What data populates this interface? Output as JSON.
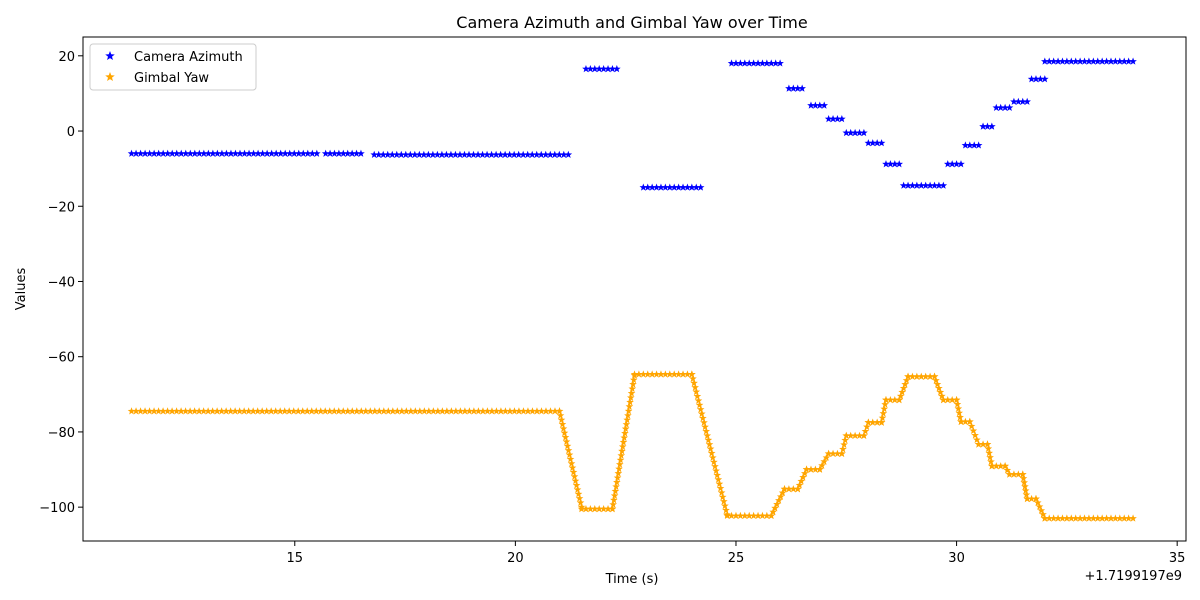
{
  "chart_data": {
    "type": "scatter",
    "title": "Camera Azimuth and Gimbal Yaw over Time",
    "xlabel": "Time (s)",
    "ylabel": "Values",
    "x_offset_label": "+1.7199197e9",
    "xlim": [
      10.2,
      35.2
    ],
    "ylim": [
      -109,
      25
    ],
    "xticks": [
      15,
      20,
      25,
      30,
      35
    ],
    "yticks": [
      20,
      0,
      -20,
      -40,
      -60,
      -80,
      -100
    ],
    "ytick_labels": [
      "20",
      "0",
      "−20",
      "−40",
      "−60",
      "−80",
      "−100"
    ],
    "grid": false,
    "legend_position": "top-left",
    "marker": "star",
    "series": [
      {
        "name": "Camera Azimuth",
        "color": "#0000ff",
        "segments": [
          {
            "x_start": 11.3,
            "x_end": 15.5,
            "y_start": -6,
            "y_end": -6
          },
          {
            "x_start": 15.7,
            "x_end": 16.5,
            "y_start": -6,
            "y_end": -6
          },
          {
            "x_start": 16.8,
            "x_end": 21.2,
            "y_start": -6.3,
            "y_end": -6.3
          },
          {
            "x_start": 21.6,
            "x_end": 22.3,
            "y_start": 16.5,
            "y_end": 16.5
          },
          {
            "x_start": 22.9,
            "x_end": 24.2,
            "y_start": -15,
            "y_end": -15
          },
          {
            "x_start": 24.9,
            "x_end": 26.0,
            "y_start": 18,
            "y_end": 18
          },
          {
            "x_start": 26.2,
            "x_end": 26.5,
            "y_start": 11.3,
            "y_end": 11.3
          },
          {
            "x_start": 26.7,
            "x_end": 27.0,
            "y_start": 6.8,
            "y_end": 6.8
          },
          {
            "x_start": 27.1,
            "x_end": 27.4,
            "y_start": 3.2,
            "y_end": 3.2
          },
          {
            "x_start": 27.5,
            "x_end": 27.9,
            "y_start": -0.5,
            "y_end": -0.5
          },
          {
            "x_start": 28.0,
            "x_end": 28.3,
            "y_start": -3.2,
            "y_end": -3.2
          },
          {
            "x_start": 28.4,
            "x_end": 28.7,
            "y_start": -8.8,
            "y_end": -8.8
          },
          {
            "x_start": 28.8,
            "x_end": 29.7,
            "y_start": -14.5,
            "y_end": -14.5
          },
          {
            "x_start": 29.8,
            "x_end": 30.1,
            "y_start": -8.8,
            "y_end": -8.8
          },
          {
            "x_start": 30.2,
            "x_end": 30.5,
            "y_start": -3.8,
            "y_end": -3.8
          },
          {
            "x_start": 30.6,
            "x_end": 30.8,
            "y_start": 1.2,
            "y_end": 1.2
          },
          {
            "x_start": 30.9,
            "x_end": 31.2,
            "y_start": 6.2,
            "y_end": 6.2
          },
          {
            "x_start": 31.3,
            "x_end": 31.6,
            "y_start": 7.8,
            "y_end": 7.8
          },
          {
            "x_start": 31.7,
            "x_end": 32.0,
            "y_start": 13.8,
            "y_end": 13.8
          },
          {
            "x_start": 32.0,
            "x_end": 34.0,
            "y_start": 18.5,
            "y_end": 18.5
          }
        ]
      },
      {
        "name": "Gimbal Yaw",
        "color": "#ffa500",
        "segments": [
          {
            "x_start": 11.3,
            "x_end": 21.0,
            "y_start": -74.5,
            "y_end": -74.5
          },
          {
            "x_start": 21.0,
            "x_end": 21.5,
            "y_start": -74.5,
            "y_end": -100
          },
          {
            "x_start": 21.5,
            "x_end": 22.2,
            "y_start": -100.5,
            "y_end": -100.5
          },
          {
            "x_start": 22.2,
            "x_end": 22.7,
            "y_start": -100.5,
            "y_end": -65
          },
          {
            "x_start": 22.7,
            "x_end": 24.0,
            "y_start": -64.7,
            "y_end": -64.7
          },
          {
            "x_start": 24.0,
            "x_end": 24.8,
            "y_start": -64.7,
            "y_end": -102
          },
          {
            "x_start": 24.8,
            "x_end": 25.8,
            "y_start": -102.3,
            "y_end": -102.3
          },
          {
            "x_start": 25.8,
            "x_end": 26.1,
            "y_start": -102.3,
            "y_end": -95.2
          },
          {
            "x_start": 26.1,
            "x_end": 26.4,
            "y_start": -95.2,
            "y_end": -95.2
          },
          {
            "x_start": 26.4,
            "x_end": 26.6,
            "y_start": -95.2,
            "y_end": -90
          },
          {
            "x_start": 26.6,
            "x_end": 26.9,
            "y_start": -90,
            "y_end": -90
          },
          {
            "x_start": 26.9,
            "x_end": 27.1,
            "y_start": -90,
            "y_end": -85.8
          },
          {
            "x_start": 27.1,
            "x_end": 27.4,
            "y_start": -85.8,
            "y_end": -85.8
          },
          {
            "x_start": 27.4,
            "x_end": 27.5,
            "y_start": -85.8,
            "y_end": -81
          },
          {
            "x_start": 27.5,
            "x_end": 27.9,
            "y_start": -81,
            "y_end": -81
          },
          {
            "x_start": 27.9,
            "x_end": 28.0,
            "y_start": -81,
            "y_end": -77.5
          },
          {
            "x_start": 28.0,
            "x_end": 28.3,
            "y_start": -77.5,
            "y_end": -77.5
          },
          {
            "x_start": 28.3,
            "x_end": 28.4,
            "y_start": -77.5,
            "y_end": -71.5
          },
          {
            "x_start": 28.4,
            "x_end": 28.7,
            "y_start": -71.5,
            "y_end": -71.5
          },
          {
            "x_start": 28.7,
            "x_end": 28.9,
            "y_start": -71.5,
            "y_end": -65.3
          },
          {
            "x_start": 28.9,
            "x_end": 29.5,
            "y_start": -65.3,
            "y_end": -65.3
          },
          {
            "x_start": 29.5,
            "x_end": 29.7,
            "y_start": -65.3,
            "y_end": -71.5
          },
          {
            "x_start": 29.7,
            "x_end": 30.0,
            "y_start": -71.5,
            "y_end": -71.5
          },
          {
            "x_start": 30.0,
            "x_end": 30.1,
            "y_start": -71.5,
            "y_end": -77.3
          },
          {
            "x_start": 30.1,
            "x_end": 30.3,
            "y_start": -77.3,
            "y_end": -77.3
          },
          {
            "x_start": 30.3,
            "x_end": 30.5,
            "y_start": -77.3,
            "y_end": -83.3
          },
          {
            "x_start": 30.5,
            "x_end": 30.7,
            "y_start": -83.3,
            "y_end": -83.3
          },
          {
            "x_start": 30.7,
            "x_end": 30.8,
            "y_start": -83.3,
            "y_end": -89.1
          },
          {
            "x_start": 30.8,
            "x_end": 31.1,
            "y_start": -89.1,
            "y_end": -89.1
          },
          {
            "x_start": 31.1,
            "x_end": 31.2,
            "y_start": -89.1,
            "y_end": -91.3
          },
          {
            "x_start": 31.2,
            "x_end": 31.5,
            "y_start": -91.3,
            "y_end": -91.3
          },
          {
            "x_start": 31.5,
            "x_end": 31.6,
            "y_start": -91.3,
            "y_end": -97.8
          },
          {
            "x_start": 31.6,
            "x_end": 31.8,
            "y_start": -97.8,
            "y_end": -97.8
          },
          {
            "x_start": 31.8,
            "x_end": 32.0,
            "y_start": -97.8,
            "y_end": -103
          },
          {
            "x_start": 32.0,
            "x_end": 34.0,
            "y_start": -103,
            "y_end": -103
          }
        ]
      }
    ]
  }
}
